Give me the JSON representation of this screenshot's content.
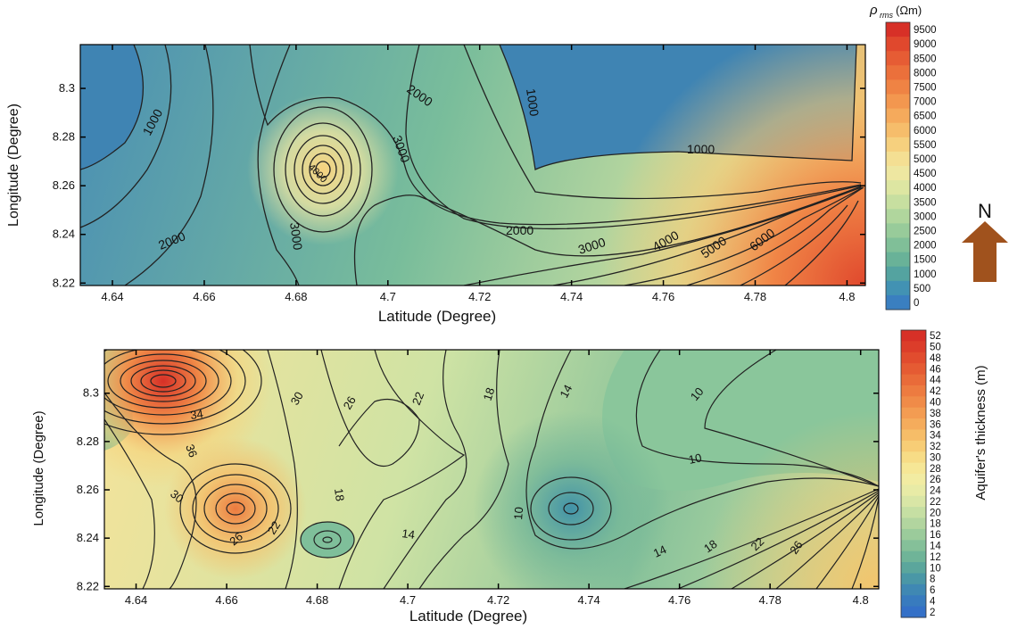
{
  "chart_data": [
    {
      "type": "contour",
      "xlabel": "Latitude (Degree)",
      "ylabel": "Longitude (Degree)",
      "xlim": [
        4.633,
        4.804
      ],
      "ylim": [
        8.219,
        8.318
      ],
      "x_ticks": [
        "4.64",
        "4.66",
        "4.68",
        "4.7",
        "4.72",
        "4.74",
        "4.76",
        "4.78",
        "4.8"
      ],
      "x_tick_values": [
        4.64,
        4.66,
        4.68,
        4.7,
        4.72,
        4.74,
        4.76,
        4.78,
        4.8
      ],
      "y_ticks": [
        "8.3",
        "8.28",
        "8.26",
        "8.24",
        "8.22"
      ],
      "y_tick_values": [
        8.3,
        8.28,
        8.26,
        8.24,
        8.22
      ],
      "grid": false,
      "colorbar": {
        "title_symbol": "ρ",
        "title_subscript": "rms",
        "title_unit": "(Ωm)",
        "labels": [
          "9500",
          "9000",
          "8500",
          "8000",
          "7500",
          "7000",
          "6500",
          "6000",
          "5500",
          "5000",
          "4500",
          "4000",
          "3500",
          "3000",
          "2500",
          "2000",
          "1500",
          "1000",
          "500",
          "0"
        ],
        "colors": [
          "#d73027",
          "#e0482d",
          "#e65c34",
          "#eb703b",
          "#ef8344",
          "#f3974f",
          "#f5aa5c",
          "#f6bd6b",
          "#f6d07e",
          "#f4df93",
          "#eee7a1",
          "#dde6a2",
          "#c7dfa0",
          "#b0d69d",
          "#98cb9a",
          "#80bf98",
          "#69b298",
          "#54a3a0",
          "#4292b3",
          "#3a7fc0"
        ]
      },
      "contour_labels": [
        "1000",
        "2000",
        "2000",
        "1000",
        "1000",
        "3000",
        "4000",
        "2000",
        "3000",
        "3000",
        "4000",
        "5000",
        "6000",
        "2000"
      ],
      "compass": {
        "label": "N",
        "color": "#a0521d"
      }
    },
    {
      "type": "contour",
      "xlabel": "Latitude (Degree)",
      "ylabel": "Longitude (Degree)",
      "xlim": [
        4.633,
        4.804
      ],
      "ylim": [
        8.219,
        8.318
      ],
      "x_ticks": [
        "4.64",
        "4.66",
        "4.68",
        "4.7",
        "4.72",
        "4.74",
        "4.76",
        "4.78",
        "4.8"
      ],
      "x_tick_values": [
        4.64,
        4.66,
        4.68,
        4.7,
        4.72,
        4.74,
        4.76,
        4.78,
        4.8
      ],
      "y_ticks": [
        "8.3",
        "8.28",
        "8.26",
        "8.24",
        "8.22"
      ],
      "y_tick_values": [
        8.3,
        8.28,
        8.26,
        8.24,
        8.22
      ],
      "grid": false,
      "colorbar": {
        "title": "Aquifer's thickness (m)",
        "labels": [
          "52",
          "50",
          "48",
          "46",
          "44",
          "42",
          "40",
          "38",
          "36",
          "34",
          "32",
          "30",
          "28",
          "26",
          "24",
          "22",
          "20",
          "18",
          "16",
          "14",
          "12",
          "10",
          "8",
          "6",
          "4",
          "2"
        ],
        "colors": [
          "#d73027",
          "#dc3d2a",
          "#e14c2e",
          "#e55b33",
          "#e96b39",
          "#ed7b40",
          "#f08b48",
          "#f39c52",
          "#f5ac5c",
          "#f6bd68",
          "#f7cd76",
          "#f7dc86",
          "#f6e796",
          "#f2eca2",
          "#e8eba6",
          "#d9e6a6",
          "#c6dfa3",
          "#b2d59f",
          "#9bcb9b",
          "#85c099",
          "#6fb498",
          "#5ba69c",
          "#4a97a6",
          "#3f88b3",
          "#387bbe",
          "#3470c7"
        ]
      },
      "contour_labels": [
        "34",
        "30",
        "26",
        "22",
        "18",
        "14",
        "10",
        "10",
        "36",
        "30",
        "26",
        "22",
        "18",
        "14",
        "10",
        "14",
        "18",
        "22",
        "26"
      ]
    }
  ]
}
